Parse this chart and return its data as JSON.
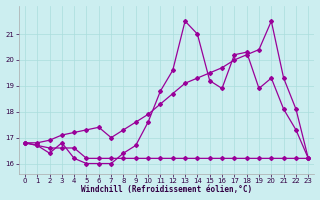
{
  "xlabel": "Windchill (Refroidissement éolien,°C)",
  "background_color": "#cceef0",
  "grid_color": "#aadddd",
  "line_color": "#990099",
  "hours": [
    0,
    1,
    2,
    3,
    4,
    5,
    6,
    7,
    8,
    9,
    10,
    11,
    12,
    13,
    14,
    15,
    16,
    17,
    18,
    19,
    20,
    21,
    22,
    23
  ],
  "series_zigzag": [
    16.8,
    16.7,
    16.4,
    16.8,
    16.2,
    16.0,
    16.0,
    16.0,
    16.4,
    16.7,
    17.6,
    18.8,
    19.6,
    21.5,
    21.0,
    19.2,
    18.9,
    20.2,
    20.3,
    18.9,
    19.3,
    18.1,
    17.3,
    16.2
  ],
  "series_rising": [
    16.8,
    16.8,
    16.9,
    17.1,
    17.2,
    17.3,
    17.4,
    17.0,
    17.3,
    17.6,
    17.9,
    18.3,
    18.7,
    19.1,
    19.3,
    19.5,
    19.7,
    20.0,
    20.2,
    20.4,
    21.5,
    19.3,
    18.1,
    16.2
  ],
  "series_flat": [
    16.8,
    16.7,
    16.6,
    16.6,
    16.6,
    16.2,
    16.2,
    16.2,
    16.2,
    16.2,
    16.2,
    16.2,
    16.2,
    16.2,
    16.2,
    16.2,
    16.2,
    16.2,
    16.2,
    16.2,
    16.2,
    16.2,
    16.2,
    16.2
  ],
  "ylim": [
    15.6,
    22.1
  ],
  "yticks": [
    16,
    17,
    18,
    19,
    20,
    21
  ],
  "xticks": [
    0,
    1,
    2,
    3,
    4,
    5,
    6,
    7,
    8,
    9,
    10,
    11,
    12,
    13,
    14,
    15,
    16,
    17,
    18,
    19,
    20,
    21,
    22,
    23
  ]
}
